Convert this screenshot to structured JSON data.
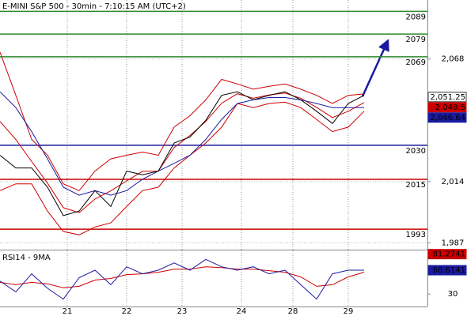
{
  "chart_data": [
    {
      "type": "line",
      "title": "E-MINI S&P 500 - 30min - 7:10:15 AM (UTC+2)",
      "x": [
        0,
        4,
        8,
        12,
        16,
        20,
        24,
        28,
        32,
        36,
        40,
        44,
        48,
        52,
        56,
        60,
        64,
        68,
        72,
        76,
        80,
        84,
        88,
        92
      ],
      "xlim": [
        0,
        108
      ],
      "ylim": [
        1984,
        2094
      ],
      "yticks": [
        {
          "value": 2068,
          "label": "2,068"
        },
        {
          "value": 2014,
          "label": "2,014"
        },
        {
          "value": 1987,
          "label": "1,987"
        }
      ],
      "levels": [
        {
          "value": 2089,
          "color": "#2a8a2a"
        },
        {
          "value": 2079,
          "color": "#2a8a2a"
        },
        {
          "value": 2069,
          "color": "#2a8a2a"
        },
        {
          "value": 2030,
          "color": "#1a1a9a"
        },
        {
          "value": 2015,
          "color": "#cc0000"
        },
        {
          "value": 1993,
          "color": "#cc0000"
        }
      ],
      "series": [
        {
          "color": "#cc0000",
          "values": [
            2071,
            2052,
            2032.6,
            2025.6,
            2013,
            2010,
            2018.6,
            2024,
            2025.6,
            2027,
            2025.6,
            2038,
            2043,
            2050,
            2059,
            2057,
            2054.7,
            2056,
            2057,
            2054.7,
            2052,
            2048.4,
            2052,
            2052.6
          ]
        },
        {
          "color": "#cc0000",
          "values": [
            2040.5,
            2032.5,
            2022.8,
            2013.3,
            2002.5,
            2000.3,
            2006.3,
            2009.9,
            2014.3,
            2018.5,
            2018.6,
            2029,
            2034.3,
            2040.5,
            2048.5,
            2052.7,
            2050.7,
            2052.2,
            2053,
            2050.7,
            2046.7,
            2042.2,
            2045,
            2048.8
          ]
        },
        {
          "color": "#cc0000",
          "values": [
            2010,
            2013,
            2013,
            2001,
            1992,
            1990.5,
            1994,
            1995.8,
            2003,
            2010,
            2011.5,
            2020,
            2025.6,
            2031,
            2038,
            2048.4,
            2046.6,
            2048.4,
            2049,
            2046.6,
            2041.4,
            2036,
            2038,
            2045
          ]
        },
        {
          "color": "#1a1aa0",
          "values": [
            2053.6,
            2046.6,
            2036,
            2024,
            2011.5,
            2008,
            2010,
            2008,
            2010,
            2015,
            2018.6,
            2022,
            2025.6,
            2032.6,
            2041.4,
            2048.4,
            2050,
            2051,
            2051,
            2050,
            2048.4,
            2046.6,
            2046.6,
            2046.6
          ]
        },
        {
          "color": "#000000",
          "values": [
            2025.6,
            2020,
            2020,
            2011.5,
            1999,
            2001,
            2010,
            2003,
            2018.6,
            2017,
            2018.6,
            2031,
            2033.6,
            2041,
            2052,
            2053.6,
            2050,
            2052,
            2053.6,
            2050,
            2045,
            2039.6,
            2048.4,
            2052
          ]
        }
      ],
      "value_tags": [
        {
          "value": 2051.25,
          "label": "2,051.25",
          "fill": "#ffffff"
        },
        {
          "value": 2049.5,
          "label": "2,049.5",
          "fill": "#cc0000"
        },
        {
          "value": 2046.64,
          "label": "2,046.64",
          "fill": "#1a1aa0"
        }
      ]
    },
    {
      "type": "line",
      "title": "RSI14 - 9MA",
      "x": [
        0,
        4,
        8,
        12,
        16,
        20,
        24,
        28,
        32,
        36,
        40,
        44,
        48,
        52,
        56,
        60,
        64,
        68,
        72,
        76,
        80,
        84,
        88,
        92
      ],
      "xlim": [
        0,
        108
      ],
      "ylim": [
        14,
        86
      ],
      "yticks": [
        30
      ],
      "xticks": [
        {
          "value": 17,
          "label": "21"
        },
        {
          "value": 32,
          "label": "22"
        },
        {
          "value": 46,
          "label": "23"
        },
        {
          "value": 61,
          "label": "24"
        },
        {
          "value": 74,
          "label": "28"
        },
        {
          "value": 88,
          "label": "29"
        }
      ],
      "series": [
        {
          "color": "#cc0000",
          "values": [
            45,
            42,
            45,
            43,
            38,
            40,
            48,
            50,
            55,
            56,
            58,
            62,
            62,
            65,
            64,
            62,
            62,
            60,
            58,
            52,
            40,
            42,
            52,
            58
          ]
        },
        {
          "color": "#1a1aa0",
          "values": [
            46.7,
            32.8,
            56,
            37.4,
            23.5,
            51,
            60.6,
            42,
            65,
            56,
            60.6,
            70,
            60.6,
            74.5,
            65,
            60.6,
            65,
            56,
            60.6,
            42,
            23.5,
            56,
            60.6,
            60.6
          ]
        }
      ],
      "value_tags": [
        {
          "value": 81.2741,
          "fill": "#cc0000"
        },
        {
          "value": 60.6141,
          "fill": "#1a1aa0"
        }
      ]
    }
  ]
}
